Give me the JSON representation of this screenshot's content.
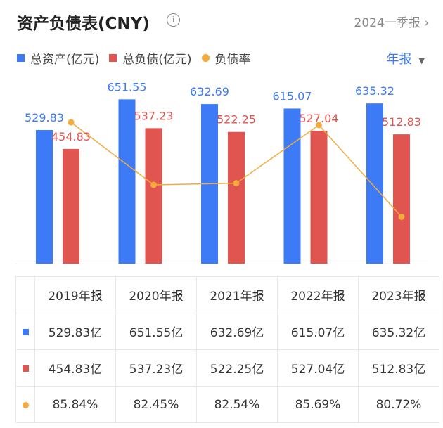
{
  "header": {
    "title": "资产负债表(CNY)",
    "info_icon": "info-icon",
    "period_link": "2024一季报"
  },
  "legend": [
    {
      "label": "总资产(亿元)",
      "color": "#3d7af5"
    },
    {
      "label": "总负债(亿元)",
      "color": "#e05550"
    },
    {
      "label": "负债率",
      "color": "#f2ab3c"
    }
  ],
  "frequency_selector": "年报",
  "chart_data": {
    "type": "bar",
    "categories": [
      "2019年报",
      "2020年报",
      "2021年报",
      "2022年报",
      "2023年报"
    ],
    "series": [
      {
        "name": "总资产(亿元)",
        "type": "bar",
        "color": "#3d7af5",
        "values": [
          529.83,
          651.55,
          632.69,
          615.07,
          635.32
        ],
        "labels": [
          "529.83",
          "651.55",
          "632.69",
          "615.07",
          "635.32"
        ]
      },
      {
        "name": "总负债(亿元)",
        "type": "bar",
        "color": "#e05550",
        "values": [
          454.83,
          537.23,
          522.25,
          527.04,
          512.83
        ],
        "labels": [
          "454.83",
          "537.23",
          "522.25",
          "527.04",
          "512.83"
        ]
      },
      {
        "name": "负债率",
        "type": "line",
        "color": "#f2ab3c",
        "values": [
          85.84,
          82.45,
          82.54,
          85.69,
          80.72
        ]
      }
    ],
    "grid": false
  },
  "table": {
    "headers": [
      "2019年报",
      "2020年报",
      "2021年报",
      "2022年报",
      "2023年报"
    ],
    "rows": [
      {
        "color": "#3d7af5",
        "shape": "square",
        "cells": [
          "529.83亿",
          "651.55亿",
          "632.69亿",
          "615.07亿",
          "635.32亿"
        ]
      },
      {
        "color": "#e05550",
        "shape": "square",
        "cells": [
          "454.83亿",
          "537.23亿",
          "522.25亿",
          "527.04亿",
          "512.83亿"
        ]
      },
      {
        "color": "#f2ab3c",
        "shape": "circle",
        "cells": [
          "85.84%",
          "82.45%",
          "82.54%",
          "85.69%",
          "80.72%"
        ]
      }
    ]
  }
}
